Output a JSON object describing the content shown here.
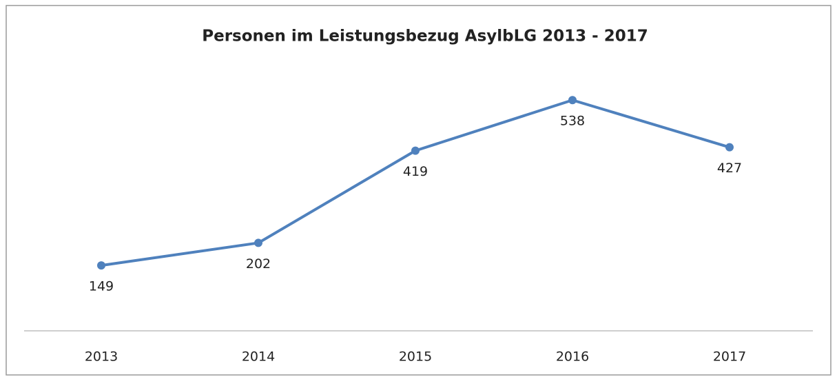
{
  "chart_data": {
    "type": "line",
    "title": "Personen im Leistungsbezug AsylbLG 2013 - 2017",
    "categories": [
      "2013",
      "2014",
      "2015",
      "2016",
      "2017"
    ],
    "values": [
      149,
      202,
      419,
      538,
      427
    ],
    "color": "#4f81bd",
    "ylim": [
      0,
      600
    ]
  }
}
